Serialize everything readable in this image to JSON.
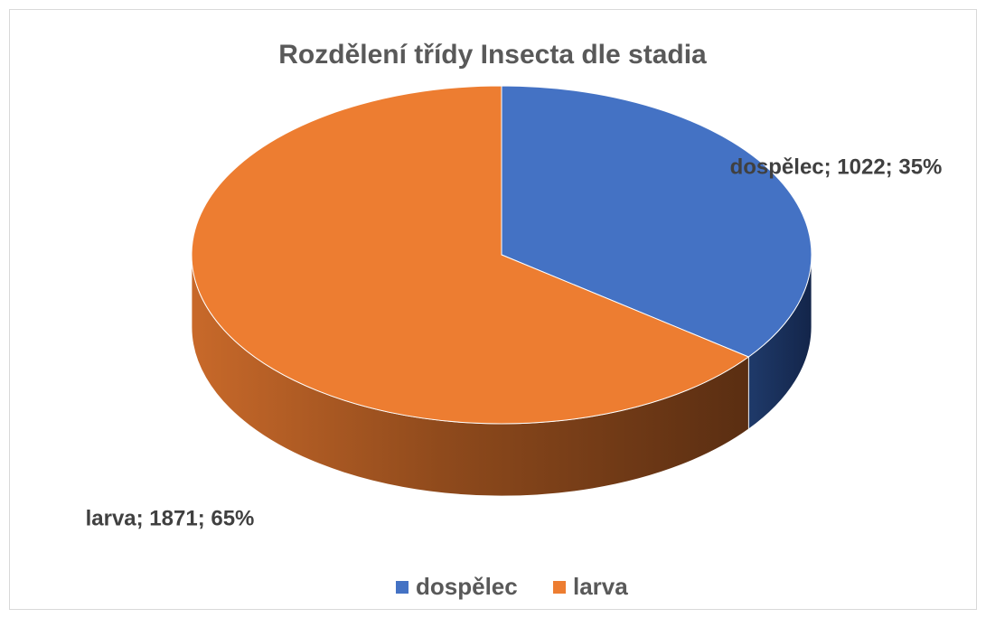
{
  "chart_data": {
    "type": "pie",
    "title": "Rozdělení třídy Insecta dle stadia",
    "categories": [
      "dospělec",
      "larva"
    ],
    "values": [
      1022,
      1871
    ],
    "value_labels": [
      "dospělec; 1022; 35%",
      "larva; 1871; 65%"
    ],
    "colors": [
      "#4472c4",
      "#ed7d31"
    ],
    "legend": "bottom"
  }
}
